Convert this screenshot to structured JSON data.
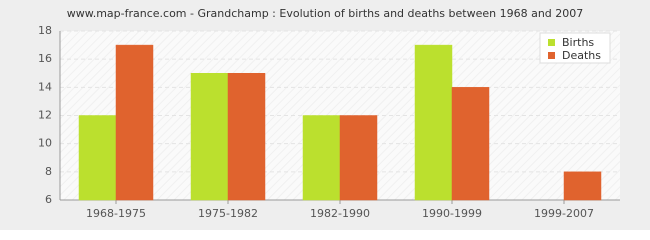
{
  "chart_data": {
    "type": "bar",
    "title": "www.map-france.com - Grandchamp : Evolution of births and deaths between 1968 and 2007",
    "categories": [
      "1968-1975",
      "1975-1982",
      "1982-1990",
      "1990-1999",
      "1999-2007"
    ],
    "series": [
      {
        "name": "Births",
        "color": "#bbe02e",
        "values": [
          12,
          15,
          12,
          17,
          6
        ]
      },
      {
        "name": "Deaths",
        "color": "#e0632e",
        "values": [
          17,
          15,
          12,
          14,
          8
        ]
      }
    ],
    "ylim": [
      6,
      18
    ],
    "yticks": [
      6,
      8,
      10,
      12,
      14,
      16,
      18
    ],
    "grid": true,
    "legend": "top-right"
  }
}
